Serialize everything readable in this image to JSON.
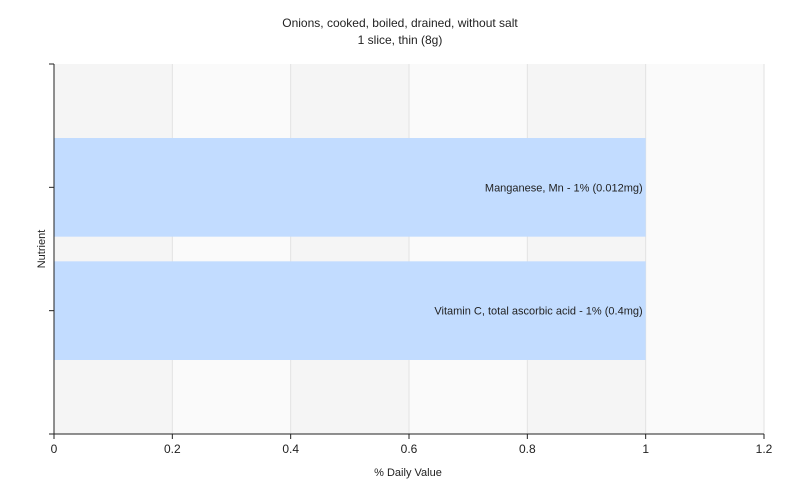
{
  "chart_data": {
    "type": "bar",
    "orientation": "horizontal",
    "title": "Onions, cooked, boiled, drained, without salt",
    "subtitle": "1 slice, thin (8g)",
    "xlabel": "% Daily Value",
    "ylabel": "Nutrient",
    "xlim": [
      0,
      1.2
    ],
    "xticks": [
      "0",
      "0.2",
      "0.4",
      "0.6",
      "0.8",
      "1",
      "1.2"
    ],
    "grid": true,
    "bar_color": "#c2dcff",
    "categories": [
      "Manganese, Mn - 1% (0.012mg)",
      "Vitamin C, total ascorbic acid - 1% (0.4mg)"
    ],
    "values": [
      1,
      1
    ]
  }
}
